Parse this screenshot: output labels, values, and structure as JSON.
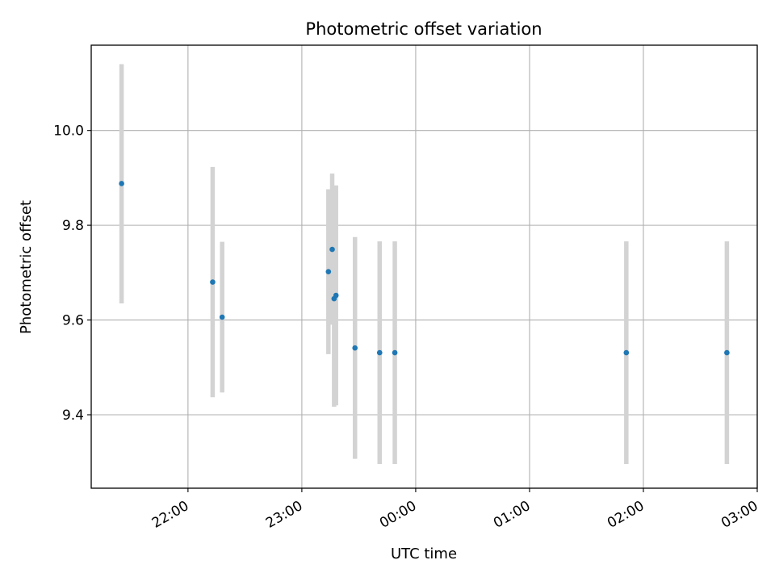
{
  "chart_data": {
    "type": "scatter",
    "title": "Photometric offset variation",
    "xlabel": "UTC time",
    "ylabel": "Photometric offset",
    "xlim": [
      "21:09",
      "03:00"
    ],
    "ylim": [
      9.245,
      10.18
    ],
    "grid": true,
    "x_ticks": [
      "22:00",
      "23:00",
      "00:00",
      "01:00",
      "02:00",
      "03:00"
    ],
    "y_ticks": [
      9.4,
      9.6,
      9.8,
      10.0
    ],
    "y_tick_labels": [
      "9.4",
      "9.6",
      "9.8",
      "10.0"
    ],
    "colors": {
      "point": "#1f77b4",
      "errorbar": "#d3d3d3",
      "grid": "#b0b0b0"
    },
    "points": [
      {
        "time": "21:25",
        "y": 9.888,
        "lo": 9.635,
        "hi": 10.14
      },
      {
        "time": "22:13",
        "y": 9.68,
        "lo": 9.437,
        "hi": 9.923
      },
      {
        "time": "22:18",
        "y": 9.606,
        "lo": 9.447,
        "hi": 9.765
      },
      {
        "time": "23:14",
        "y": 9.702,
        "lo": 9.528,
        "hi": 9.876
      },
      {
        "time": "23:16",
        "y": 9.749,
        "lo": 9.59,
        "hi": 9.909
      },
      {
        "time": "23:17",
        "y": 9.645,
        "lo": 9.417,
        "hi": 9.873
      },
      {
        "time": "23:18",
        "y": 9.652,
        "lo": 9.42,
        "hi": 9.884
      },
      {
        "time": "23:28",
        "y": 9.541,
        "lo": 9.307,
        "hi": 9.775
      },
      {
        "time": "23:41",
        "y": 9.531,
        "lo": 9.296,
        "hi": 9.766
      },
      {
        "time": "23:49",
        "y": 9.531,
        "lo": 9.296,
        "hi": 9.766
      },
      {
        "time": "01:51",
        "y": 9.531,
        "lo": 9.296,
        "hi": 9.766
      },
      {
        "time": "02:44",
        "y": 9.531,
        "lo": 9.296,
        "hi": 9.766
      }
    ]
  }
}
